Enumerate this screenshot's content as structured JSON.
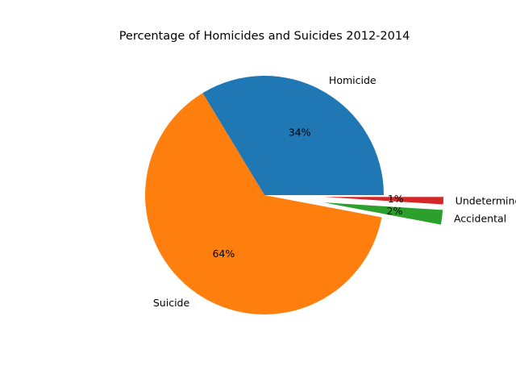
{
  "chart_data": {
    "type": "pie",
    "title": "Percentage of Homicides and Suicides 2012-2014",
    "categories": [
      "Homicide",
      "Suicide",
      "Accidental",
      "Undetermined"
    ],
    "values": [
      34,
      64,
      2,
      1
    ],
    "percent_labels": [
      "34%",
      "64%",
      "2%",
      "1%"
    ],
    "colors": [
      "#1f77b4",
      "#ff7f0e",
      "#2ca02c",
      "#d62728"
    ],
    "exploded": [
      false,
      false,
      true,
      true
    ],
    "start_angle_deg": 0,
    "direction": "counterclockwise",
    "legend": "none"
  }
}
